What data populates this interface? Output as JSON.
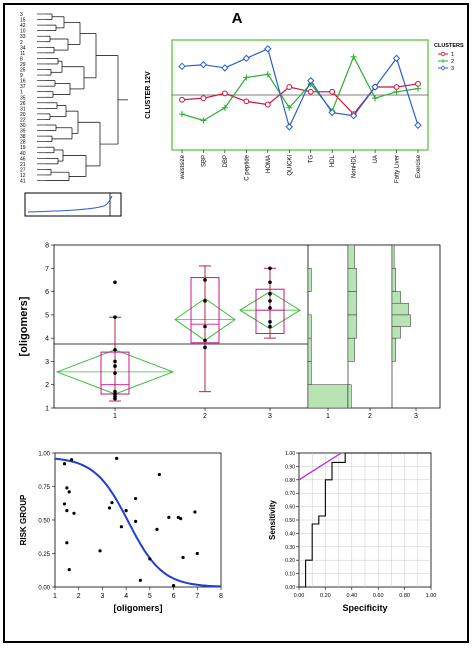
{
  "panel_label": "A",
  "chart_data": [
    {
      "type": "line",
      "title": "",
      "ylabel": "CLUSTER 12V",
      "xlabel": "",
      "categories": [
        "waistsize",
        "SBP",
        "DBP",
        "C peptide",
        "HOMA",
        "QUICKI",
        "TG",
        "HDL",
        "NonHDL",
        "UA",
        "Fatty Liver",
        "Exercise"
      ],
      "legend_title": "CLUSTERS",
      "legend_position": "right",
      "grid": false,
      "ylim": [
        -1.6,
        1.6
      ],
      "series": [
        {
          "name": "1",
          "color": "#d0103a",
          "marker": "circle",
          "values": [
            -0.15,
            -0.1,
            0.05,
            -0.2,
            -0.3,
            0.25,
            0.1,
            0.1,
            -0.6,
            0.25,
            0.25,
            0.35
          ]
        },
        {
          "name": "2",
          "color": "#2fb02f",
          "marker": "plus",
          "values": [
            -0.6,
            -0.8,
            -0.4,
            0.55,
            0.65,
            -0.4,
            0.35,
            -0.5,
            1.2,
            -0.1,
            0.1,
            0.2
          ]
        },
        {
          "name": "3",
          "color": "#2a5fd0",
          "marker": "diamond",
          "values": [
            0.9,
            0.95,
            0.85,
            1.15,
            1.45,
            -1.0,
            0.45,
            -0.55,
            -0.65,
            0.25,
            1.15,
            -0.95
          ]
        }
      ]
    },
    {
      "type": "scatter",
      "title": "",
      "ylabel": "[oligomers]",
      "xlabel": "",
      "categories": [
        "1",
        "2",
        "3"
      ],
      "ylim": [
        1,
        8
      ],
      "y_ticks": [
        "1",
        "2",
        "3",
        "4",
        "5",
        "6",
        "7",
        "8"
      ],
      "grand_mean": 3.75,
      "groups": [
        {
          "name": "1",
          "points": [
            1.4,
            1.5,
            1.6,
            1.7,
            2.5,
            2.8,
            3.0,
            3.5,
            4.9,
            6.4
          ],
          "q1": 1.6,
          "median": 2.0,
          "q3": 3.4,
          "mean": 2.55,
          "ci": [
            1.6,
            3.5
          ],
          "whisker": [
            1.3,
            4.9
          ]
        },
        {
          "name": "2",
          "points": [
            3.6,
            3.9,
            4.5,
            5.6,
            6.5
          ],
          "q1": 3.8,
          "median": 4.6,
          "q3": 6.6,
          "mean": 4.8,
          "ci": [
            3.9,
            5.7
          ],
          "whisker": [
            1.7,
            7.1
          ]
        },
        {
          "name": "3",
          "points": [
            4.5,
            4.7,
            5.3,
            5.6,
            5.9,
            6.4,
            7.0
          ],
          "q1": 4.2,
          "median": 5.2,
          "q3": 6.1,
          "mean": 5.2,
          "ci": [
            4.4,
            6.0
          ],
          "whisker": [
            4.0,
            7.0
          ]
        }
      ],
      "histograms": [
        {
          "name": "1",
          "bins": [
            {
              "lo": 1,
              "hi": 2,
              "count": 6
            },
            {
              "lo": 2,
              "hi": 3,
              "count": 0.5
            },
            {
              "lo": 3,
              "hi": 4,
              "count": 0.5
            },
            {
              "lo": 4,
              "hi": 5,
              "count": 0.5
            },
            {
              "lo": 6,
              "hi": 7,
              "count": 0.5
            }
          ]
        },
        {
          "name": "2",
          "bins": [
            {
              "lo": 1,
              "hi": 2,
              "count": 0.5
            },
            {
              "lo": 3,
              "hi": 4,
              "count": 1
            },
            {
              "lo": 4,
              "hi": 5,
              "count": 1.3
            },
            {
              "lo": 5,
              "hi": 6,
              "count": 1.3
            },
            {
              "lo": 6,
              "hi": 7,
              "count": 1.3
            },
            {
              "lo": 7,
              "hi": 8,
              "count": 1
            }
          ]
        },
        {
          "name": "3",
          "bins": [
            {
              "lo": 3,
              "hi": 4,
              "count": 0.5
            },
            {
              "lo": 4,
              "hi": 4.5,
              "count": 1.2
            },
            {
              "lo": 4.5,
              "hi": 5,
              "count": 2.6
            },
            {
              "lo": 5,
              "hi": 5.5,
              "count": 2.3
            },
            {
              "lo": 5.5,
              "hi": 6,
              "count": 1.2
            },
            {
              "lo": 6,
              "hi": 7,
              "count": 0.5
            },
            {
              "lo": 7,
              "hi": 8,
              "count": 0.3
            }
          ]
        }
      ]
    },
    {
      "type": "scatter",
      "title": "",
      "xlabel": "[oligomers]",
      "ylabel": "RISK GROUP",
      "xlim": [
        1,
        8
      ],
      "ylim": [
        0,
        1
      ],
      "x_ticks": [
        "1",
        "2",
        "3",
        "4",
        "5",
        "6",
        "7",
        "8"
      ],
      "y_ticks": [
        "0.00",
        "0.25",
        "0.50",
        "0.75",
        "1.00"
      ],
      "points": [
        {
          "x": 1.4,
          "y": 0.92
        },
        {
          "x": 1.5,
          "y": 0.74
        },
        {
          "x": 1.6,
          "y": 0.71
        },
        {
          "x": 1.4,
          "y": 0.62
        },
        {
          "x": 1.5,
          "y": 0.57
        },
        {
          "x": 1.5,
          "y": 0.33
        },
        {
          "x": 1.6,
          "y": 0.13
        },
        {
          "x": 1.7,
          "y": 0.95
        },
        {
          "x": 1.8,
          "y": 0.55
        },
        {
          "x": 2.9,
          "y": 0.27
        },
        {
          "x": 3.3,
          "y": 0.59
        },
        {
          "x": 3.4,
          "y": 0.63
        },
        {
          "x": 3.6,
          "y": 0.96
        },
        {
          "x": 3.8,
          "y": 0.45
        },
        {
          "x": 4.0,
          "y": 0.57
        },
        {
          "x": 4.4,
          "y": 0.49
        },
        {
          "x": 4.4,
          "y": 0.66
        },
        {
          "x": 4.6,
          "y": 0.05
        },
        {
          "x": 5.0,
          "y": 0.21
        },
        {
          "x": 5.3,
          "y": 0.43
        },
        {
          "x": 5.4,
          "y": 0.84
        },
        {
          "x": 5.8,
          "y": 0.52
        },
        {
          "x": 6.0,
          "y": 0.01
        },
        {
          "x": 6.2,
          "y": 0.52
        },
        {
          "x": 6.3,
          "y": 0.51
        },
        {
          "x": 6.4,
          "y": 0.22
        },
        {
          "x": 6.9,
          "y": 0.56
        },
        {
          "x": 7.0,
          "y": 0.25
        }
      ],
      "curve": {
        "color": "#1f3fd6",
        "midpoint": 4.1,
        "slope": 1.4,
        "upper": 0.97
      }
    },
    {
      "type": "line",
      "title": "",
      "xlabel": "Specificity",
      "ylabel": "Sensitivity",
      "xlim": [
        0,
        1
      ],
      "ylim": [
        0,
        1
      ],
      "x_ticks": [
        "0.00",
        "0.20",
        "0.40",
        "0.60",
        "0.80",
        "1.00"
      ],
      "y_ticks": [
        "0.00",
        "0.10",
        "0.20",
        "0.30",
        "0.40",
        "0.50",
        "0.60",
        "0.70",
        "0.80",
        "0.90",
        "1.00"
      ],
      "grid": true,
      "roc": [
        [
          0,
          0
        ],
        [
          0.05,
          0
        ],
        [
          0.05,
          0.2
        ],
        [
          0.1,
          0.2
        ],
        [
          0.1,
          0.47
        ],
        [
          0.15,
          0.47
        ],
        [
          0.15,
          0.53
        ],
        [
          0.2,
          0.53
        ],
        [
          0.2,
          0.8
        ],
        [
          0.25,
          0.8
        ],
        [
          0.25,
          0.93
        ],
        [
          0.35,
          0.93
        ],
        [
          0.35,
          1.0
        ],
        [
          1,
          1
        ]
      ],
      "tangent": [
        [
          0,
          0.8
        ],
        [
          0.32,
          1.0
        ]
      ],
      "roc_color": "#000000",
      "tangent_color": "#c020e0"
    }
  ],
  "dendrogram": {
    "leaves": [
      "3",
      "15",
      "42",
      "10",
      "33",
      "2",
      "34",
      "11",
      "8",
      "29",
      "25",
      "9",
      "16",
      "37",
      "1",
      "35",
      "26",
      "31",
      "20",
      "22",
      "30",
      "39",
      "38",
      "28",
      "19",
      "40",
      "46",
      "21",
      "27",
      "12",
      "41"
    ]
  }
}
